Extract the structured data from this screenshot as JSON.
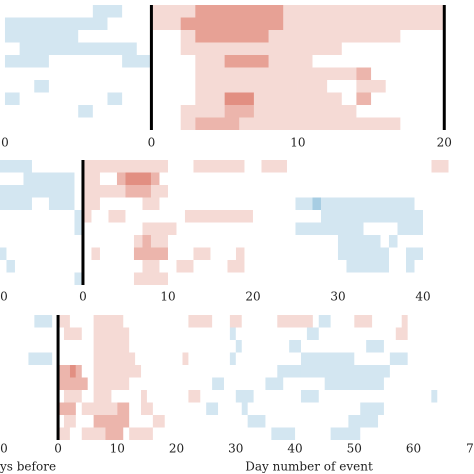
{
  "chart_data": [
    {
      "type": "heatmap",
      "xlim": [
        -10.34,
        22.03
      ],
      "rows": 10,
      "vmax": 3,
      "pos_color": "#d6604d",
      "neg_color": "#4393c3",
      "vlines": [
        0,
        20
      ],
      "xticks": [
        {
          "value": -10,
          "label": "0"
        },
        0,
        10,
        20
      ],
      "cells": [
        [
          -4,
          -2,
          0,
          -1
        ],
        [
          0,
          20,
          0,
          1
        ],
        [
          3,
          9,
          0,
          2
        ],
        [
          -10,
          -3,
          1,
          -1
        ],
        [
          0,
          20,
          1,
          1
        ],
        [
          2,
          9,
          1,
          2
        ],
        [
          -10,
          -5,
          2,
          -1
        ],
        [
          2,
          17,
          2,
          1
        ],
        [
          3,
          8,
          2,
          2
        ],
        [
          -9,
          -1,
          3,
          -1
        ],
        [
          2,
          13,
          3,
          1
        ],
        [
          -10,
          -7,
          4,
          -1
        ],
        [
          -2,
          0,
          4,
          -1
        ],
        [
          3,
          11,
          4,
          1
        ],
        [
          5,
          8,
          4,
          2
        ],
        [
          3,
          14,
          5,
          1
        ],
        [
          14,
          15,
          5,
          2
        ],
        [
          -8,
          -7,
          6,
          -1
        ],
        [
          3,
          10,
          6,
          1
        ],
        [
          10,
          12,
          6,
          1
        ],
        [
          14,
          16,
          6,
          1
        ],
        [
          -10,
          -9,
          7,
          -1
        ],
        [
          -3,
          -2,
          7,
          -1
        ],
        [
          3,
          5,
          7,
          1
        ],
        [
          5,
          7,
          7,
          3
        ],
        [
          7,
          13,
          7,
          1
        ],
        [
          14,
          15,
          7,
          2
        ],
        [
          -5,
          -4,
          8,
          -1
        ],
        [
          2,
          5,
          8,
          1
        ],
        [
          5,
          7,
          8,
          2
        ],
        [
          7,
          14,
          8,
          1
        ],
        [
          2,
          3,
          9,
          1
        ],
        [
          3,
          6,
          9,
          2
        ],
        [
          6,
          17,
          9,
          1
        ]
      ]
    },
    {
      "type": "heatmap",
      "xlim": [
        -9.76,
        46.0
      ],
      "rows": 10,
      "vmax": 3,
      "pos_color": "#d6604d",
      "neg_color": "#4393c3",
      "vlines": [
        0
      ],
      "xticks": [
        {
          "value": -10,
          "label": "0"
        },
        0,
        10,
        20,
        30,
        40
      ],
      "cells": [
        [
          -10,
          -6,
          0,
          -1
        ],
        [
          0,
          10,
          0,
          1
        ],
        [
          13,
          19,
          0,
          1
        ],
        [
          21,
          24,
          0,
          1
        ],
        [
          41,
          43,
          0,
          1
        ],
        [
          -7,
          -1,
          1,
          -1
        ],
        [
          0,
          2,
          1,
          1
        ],
        [
          4,
          5,
          1,
          2
        ],
        [
          5,
          8,
          1,
          3
        ],
        [
          8,
          9,
          1,
          2
        ],
        [
          -10,
          -1,
          2,
          -1
        ],
        [
          0,
          5,
          2,
          1
        ],
        [
          5,
          8,
          2,
          2
        ],
        [
          8,
          10,
          2,
          1
        ],
        [
          -10,
          -6,
          3,
          -1
        ],
        [
          -4,
          -1,
          3,
          -1
        ],
        [
          0,
          2,
          3,
          1
        ],
        [
          7,
          9,
          3,
          1
        ],
        [
          25,
          27,
          3,
          -1
        ],
        [
          27,
          28,
          3,
          -2
        ],
        [
          28,
          39,
          3,
          -1
        ],
        [
          -1,
          0,
          4,
          -1
        ],
        [
          0,
          1,
          4,
          1
        ],
        [
          3,
          5,
          4,
          1
        ],
        [
          12,
          20,
          4,
          1
        ],
        [
          28,
          40,
          4,
          -1
        ],
        [
          -1,
          0,
          5,
          -1
        ],
        [
          7,
          11,
          5,
          1
        ],
        [
          25,
          33,
          5,
          -1
        ],
        [
          37,
          40,
          5,
          -1
        ],
        [
          6,
          7,
          6,
          1
        ],
        [
          7,
          8,
          6,
          2
        ],
        [
          8,
          10,
          6,
          1
        ],
        [
          30,
          35,
          6,
          -1
        ],
        [
          36,
          37,
          6,
          -1
        ],
        [
          -10,
          -9,
          7,
          -1
        ],
        [
          1,
          2,
          7,
          1
        ],
        [
          6,
          10,
          7,
          2
        ],
        [
          13,
          15,
          7,
          1
        ],
        [
          18,
          19,
          7,
          1
        ],
        [
          30,
          36,
          7,
          -1
        ],
        [
          38,
          40,
          7,
          -1
        ],
        [
          -9,
          -8,
          8,
          -1
        ],
        [
          7,
          9,
          8,
          1
        ],
        [
          11,
          13,
          8,
          1
        ],
        [
          17,
          19,
          8,
          1
        ],
        [
          31,
          36,
          8,
          -1
        ],
        [
          38,
          39,
          8,
          -1
        ],
        [
          -1,
          0,
          9,
          -1
        ],
        [
          6,
          10,
          9,
          1
        ]
      ]
    },
    {
      "type": "heatmap",
      "xlim": [
        -9.8,
        70.2
      ],
      "rows": 10,
      "vmax": 3,
      "pos_color": "#d6604d",
      "neg_color": "#4393c3",
      "vlines": [
        0
      ],
      "xticks": [
        {
          "value": -10,
          "label": "0"
        },
        0,
        10,
        20,
        30,
        40,
        50,
        60,
        {
          "value": 70,
          "label": "7"
        }
      ],
      "xlabel_left": "ys before",
      "xlabel": "Day number of event",
      "cells": [
        [
          -4,
          -1,
          0,
          -1
        ],
        [
          0,
          2,
          0,
          1
        ],
        [
          6,
          11,
          0,
          1
        ],
        [
          22,
          26,
          0,
          1
        ],
        [
          29,
          31,
          0,
          1
        ],
        [
          37,
          43,
          0,
          1
        ],
        [
          44,
          46,
          0,
          -1
        ],
        [
          50,
          53,
          0,
          1
        ],
        [
          58,
          59,
          0,
          1
        ],
        [
          1,
          4,
          1,
          1
        ],
        [
          6,
          12,
          1,
          1
        ],
        [
          29,
          30,
          1,
          -1
        ],
        [
          42,
          44,
          1,
          -1
        ],
        [
          57,
          59,
          1,
          1
        ],
        [
          6,
          12,
          2,
          1
        ],
        [
          30,
          31,
          2,
          -1
        ],
        [
          39,
          41,
          2,
          -1
        ],
        [
          52,
          55,
          2,
          -1
        ],
        [
          -5,
          -1,
          3,
          -1
        ],
        [
          6,
          13,
          3,
          1
        ],
        [
          21,
          22,
          3,
          1
        ],
        [
          29,
          30,
          3,
          -1
        ],
        [
          41,
          50,
          3,
          -1
        ],
        [
          56,
          59,
          3,
          -1
        ],
        [
          0,
          2,
          4,
          2
        ],
        [
          2,
          3,
          4,
          3
        ],
        [
          3,
          4,
          4,
          2
        ],
        [
          6,
          14,
          4,
          1
        ],
        [
          37,
          41,
          4,
          -1
        ],
        [
          41,
          56,
          4,
          -1
        ],
        [
          0,
          5,
          5,
          2
        ],
        [
          6,
          12,
          5,
          1
        ],
        [
          26,
          28,
          5,
          -1
        ],
        [
          35,
          38,
          5,
          -1
        ],
        [
          45,
          55,
          5,
          -1
        ],
        [
          1,
          4,
          6,
          1
        ],
        [
          6,
          9,
          6,
          1
        ],
        [
          14,
          15,
          6,
          1
        ],
        [
          22,
          24,
          6,
          1
        ],
        [
          30,
          33,
          6,
          -1
        ],
        [
          41,
          44,
          6,
          -1
        ],
        [
          63,
          64,
          6,
          -1
        ],
        [
          0,
          3,
          7,
          2
        ],
        [
          4,
          10,
          7,
          1
        ],
        [
          10,
          12,
          7,
          2
        ],
        [
          14,
          16,
          7,
          1
        ],
        [
          25,
          27,
          7,
          -1
        ],
        [
          31,
          32,
          7,
          -1
        ],
        [
          51,
          55,
          7,
          -1
        ],
        [
          1,
          3,
          8,
          1
        ],
        [
          6,
          12,
          8,
          2
        ],
        [
          16,
          18,
          8,
          1
        ],
        [
          32,
          35,
          8,
          -1
        ],
        [
          49,
          54,
          8,
          -1
        ],
        [
          0,
          2,
          9,
          1
        ],
        [
          4,
          8,
          9,
          1
        ],
        [
          8,
          11,
          9,
          2
        ],
        [
          12,
          16,
          9,
          1
        ],
        [
          36,
          40,
          9,
          -1
        ],
        [
          46,
          51,
          9,
          -1
        ]
      ]
    }
  ]
}
